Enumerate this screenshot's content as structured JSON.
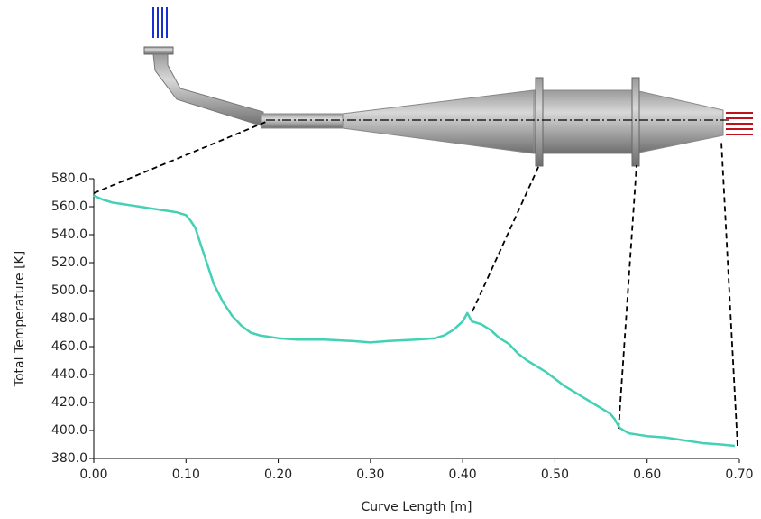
{
  "chart_data": {
    "type": "line",
    "x_label": "Curve Length [m]",
    "y_label": "Total Temperature [K]",
    "xlim": [
      0,
      0.7
    ],
    "ylim": [
      380,
      580
    ],
    "xticks": [
      {
        "value": 0,
        "label": "0.00"
      },
      {
        "value": 0.1,
        "label": "0.10"
      },
      {
        "value": 0.2,
        "label": "0.20"
      },
      {
        "value": 0.3,
        "label": "0.30"
      },
      {
        "value": 0.4,
        "label": "0.40"
      },
      {
        "value": 0.5,
        "label": "0.50"
      },
      {
        "value": 0.6,
        "label": "0.60"
      },
      {
        "value": 0.7,
        "label": "0.70"
      }
    ],
    "yticks": [
      {
        "value": 380,
        "label": "380.0"
      },
      {
        "value": 400,
        "label": "400.0"
      },
      {
        "value": 420,
        "label": "420.0"
      },
      {
        "value": 440,
        "label": "440.0"
      },
      {
        "value": 460,
        "label": "460.0"
      },
      {
        "value": 480,
        "label": "480.0"
      },
      {
        "value": 500,
        "label": "500.0"
      },
      {
        "value": 520,
        "label": "520.0"
      },
      {
        "value": 540,
        "label": "540.0"
      },
      {
        "value": 560,
        "label": "560.0"
      },
      {
        "value": 580,
        "label": "580.0"
      }
    ],
    "series": [
      {
        "color": "#43d1b6",
        "x": [
          0,
          0.01,
          0.02,
          0.03,
          0.04,
          0.05,
          0.06,
          0.07,
          0.08,
          0.09,
          0.1,
          0.105,
          0.11,
          0.115,
          0.12,
          0.125,
          0.13,
          0.14,
          0.15,
          0.16,
          0.17,
          0.18,
          0.19,
          0.2,
          0.22,
          0.25,
          0.28,
          0.3,
          0.32,
          0.35,
          0.37,
          0.38,
          0.39,
          0.4,
          0.405,
          0.41,
          0.42,
          0.43,
          0.44,
          0.45,
          0.46,
          0.47,
          0.48,
          0.49,
          0.5,
          0.51,
          0.52,
          0.53,
          0.54,
          0.55,
          0.56,
          0.565,
          0.57,
          0.58,
          0.6,
          0.62,
          0.64,
          0.66,
          0.68,
          0.695
        ],
        "values": [
          568,
          565,
          563,
          562,
          561,
          560,
          559,
          558,
          557,
          556,
          554,
          550,
          545,
          535,
          525,
          515,
          505,
          492,
          482,
          475,
          470,
          468,
          467,
          466,
          465,
          465,
          464,
          463,
          464,
          465,
          466,
          468,
          472,
          478,
          484,
          478,
          476,
          472,
          466,
          462,
          455,
          450,
          446,
          442,
          437,
          432,
          428,
          424,
          420,
          416,
          412,
          408,
          402,
          398,
          396,
          395,
          393,
          391,
          390,
          389
        ]
      }
    ]
  }
}
